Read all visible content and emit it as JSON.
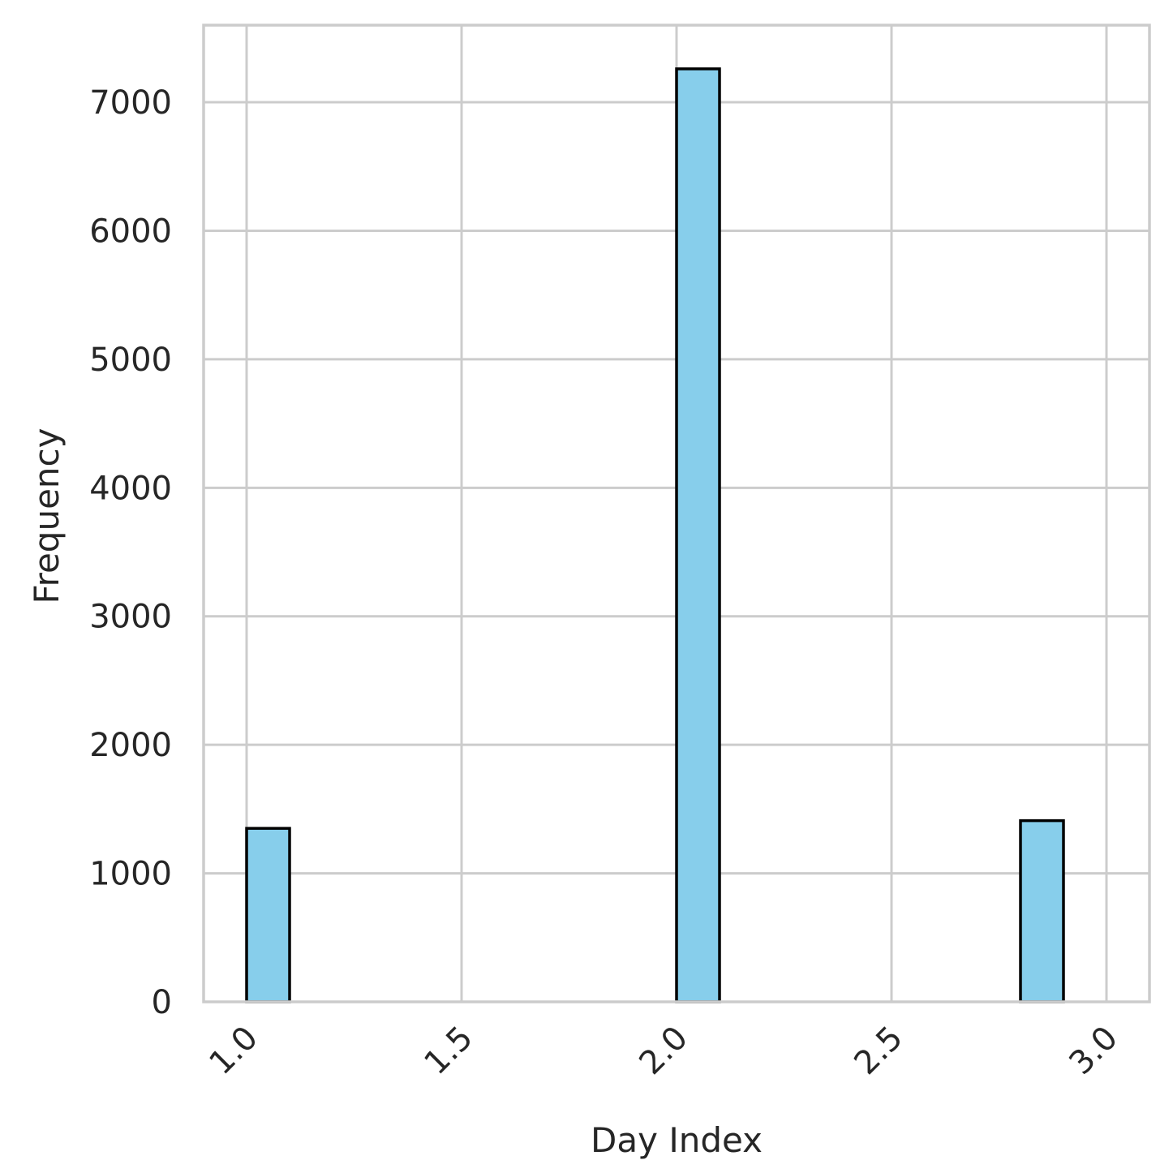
{
  "chart_data": {
    "type": "bar",
    "subtype": "histogram",
    "title": "",
    "xlabel": "Day Index",
    "ylabel": "Frequency",
    "xlim": [
      0.9,
      3.1
    ],
    "ylim": [
      0,
      7600
    ],
    "xticks": [
      "1.0",
      "1.5",
      "2.0",
      "2.5",
      "3.0"
    ],
    "yticks": [
      "0",
      "1000",
      "2000",
      "3000",
      "4000",
      "5000",
      "6000",
      "7000"
    ],
    "bin_width": 0.1,
    "bins": [
      {
        "x0": 1.0,
        "x1": 1.1,
        "count": 1350
      },
      {
        "x0": 1.1,
        "x1": 1.2,
        "count": 0
      },
      {
        "x0": 1.2,
        "x1": 1.3,
        "count": 0
      },
      {
        "x0": 1.3,
        "x1": 1.4,
        "count": 0
      },
      {
        "x0": 1.4,
        "x1": 1.5,
        "count": 0
      },
      {
        "x0": 1.5,
        "x1": 1.6,
        "count": 0
      },
      {
        "x0": 1.6,
        "x1": 1.7,
        "count": 0
      },
      {
        "x0": 1.7,
        "x1": 1.8,
        "count": 0
      },
      {
        "x0": 1.8,
        "x1": 1.9,
        "count": 0
      },
      {
        "x0": 1.9,
        "x1": 2.0,
        "count": 0
      },
      {
        "x0": 2.0,
        "x1": 2.1,
        "count": 7260
      },
      {
        "x0": 2.1,
        "x1": 2.2,
        "count": 0
      },
      {
        "x0": 2.2,
        "x1": 2.3,
        "count": 0
      },
      {
        "x0": 2.3,
        "x1": 2.4,
        "count": 0
      },
      {
        "x0": 2.4,
        "x1": 2.5,
        "count": 0
      },
      {
        "x0": 2.5,
        "x1": 2.6,
        "count": 0
      },
      {
        "x0": 2.6,
        "x1": 2.7,
        "count": 0
      },
      {
        "x0": 2.7,
        "x1": 2.8,
        "count": 0
      },
      {
        "x0": 2.8,
        "x1": 2.9,
        "count": 1410
      }
    ],
    "bar_color": "#87ceeb",
    "edge_color": "#000000",
    "grid": true,
    "legend": "none"
  }
}
